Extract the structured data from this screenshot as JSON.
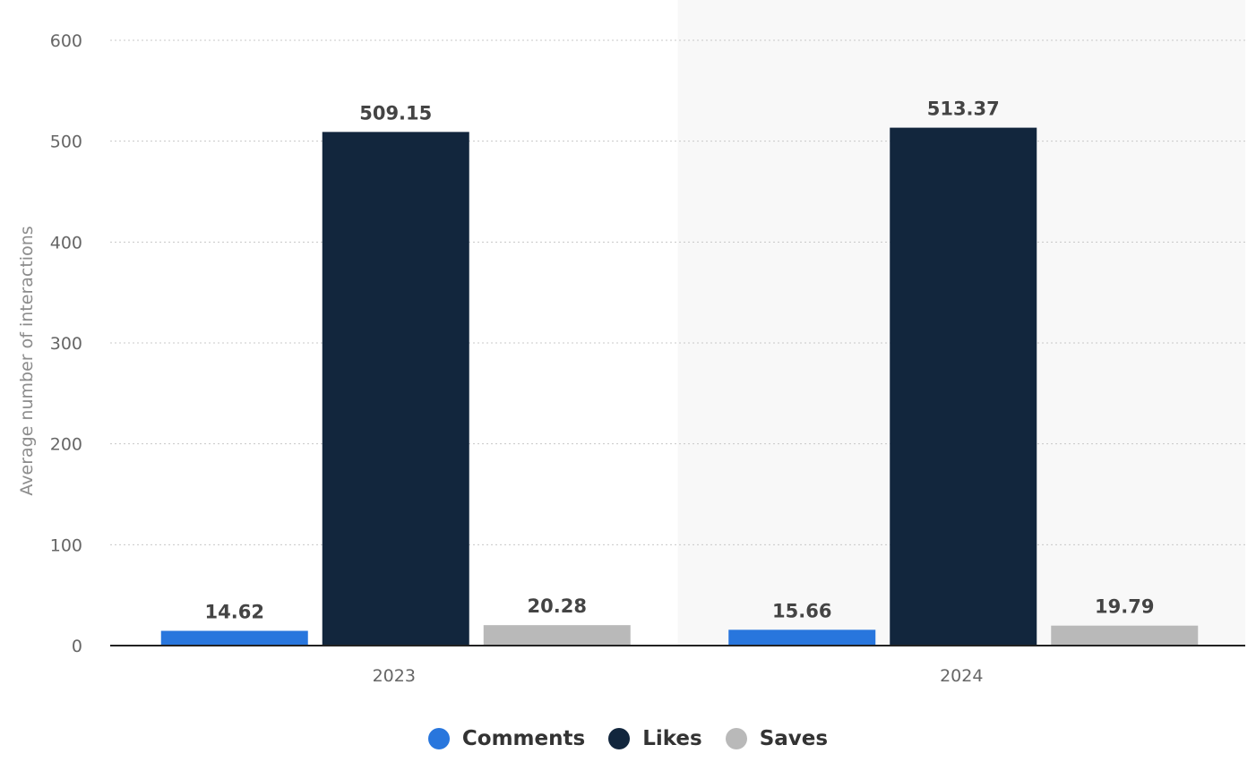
{
  "chart_data": {
    "type": "bar",
    "categories": [
      "2023",
      "2024"
    ],
    "series": [
      {
        "name": "Comments",
        "values": [
          14.62,
          15.66
        ],
        "labels": [
          "14.62",
          "15.66"
        ],
        "color": "#2876dd"
      },
      {
        "name": "Likes",
        "values": [
          509.15,
          513.37
        ],
        "labels": [
          "509.15",
          "513.37"
        ],
        "color": "#12263d"
      },
      {
        "name": "Saves",
        "values": [
          20.28,
          19.79
        ],
        "labels": [
          "20.28",
          "19.79"
        ],
        "color": "#b9b9b9"
      }
    ],
    "ylabel": "Average number of interactions",
    "xlabel": "",
    "ylim": [
      0,
      600
    ],
    "yticks": [
      0,
      100,
      200,
      300,
      400,
      500,
      600
    ],
    "grid": true,
    "legend": "bottom-center",
    "highlight_category": "2024",
    "highlight_color": "#f8f8f8"
  }
}
